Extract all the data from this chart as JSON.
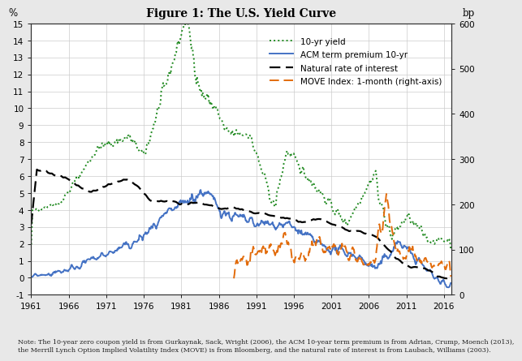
{
  "title": "Figure 1: The U.S. Yield Curve",
  "ylabel_left": "%",
  "ylabel_right": "bp",
  "xlim": [
    1961,
    2017
  ],
  "ylim_left": [
    -1,
    15
  ],
  "ylim_right": [
    0,
    600
  ],
  "xticks": [
    1961,
    1966,
    1971,
    1976,
    1981,
    1986,
    1991,
    1996,
    2001,
    2006,
    2011,
    2016
  ],
  "yticks_left": [
    -1,
    0,
    1,
    2,
    3,
    4,
    5,
    6,
    7,
    8,
    9,
    10,
    11,
    12,
    13,
    14,
    15
  ],
  "yticks_right": [
    0,
    100,
    200,
    300,
    400,
    500,
    600
  ],
  "legend_entries": [
    {
      "label": "10-yr yield",
      "color": "#228B22",
      "linestyle": "dotted",
      "linewidth": 1.4
    },
    {
      "label": "ACM term premium 10-yr",
      "color": "#4472C4",
      "linestyle": "solid",
      "linewidth": 1.4
    },
    {
      "label": "Natural rate of interest",
      "color": "#000000",
      "linestyle": "dashed",
      "linewidth": 1.6
    },
    {
      "label": "MOVE Index: 1-month (right-axis)",
      "color": "#E26B0A",
      "linestyle": "dashed",
      "linewidth": 1.4
    }
  ],
  "note_line1": "Note: The 10-year zero coupon yield is from Gurkaynak, Sack, Wright (2006), the ACM 10-year term premium is from Adrian, Crump, Moench (2013),",
  "note_line2": "the Merrill Lynch Option Implied Volatility Index (MOVE) is from Bloomberg, and the natural rate of interest is from Laubach, Williams (2003).",
  "background_color": "#FFFFFF",
  "grid_color": "#CCCCCC",
  "fig_bg": "#F0F0F0"
}
